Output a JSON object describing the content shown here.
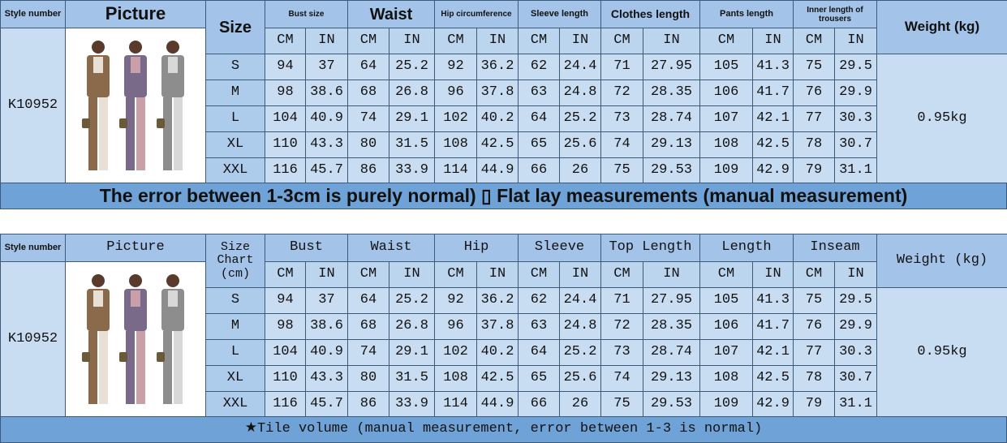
{
  "tables": [
    {
      "headers": {
        "style": "Style number",
        "picture": "Picture",
        "size": "Size",
        "groups": [
          "Bust size",
          "Waist",
          "Hip circumference",
          "Sleeve length",
          "Clothes length",
          "Pants length",
          "Inner length of trousers"
        ],
        "units": [
          "CM",
          "IN"
        ],
        "weight": "Weight (kg)"
      },
      "style_number": "K10952",
      "weight": "0.95kg",
      "rows": [
        [
          "S",
          94,
          37,
          64,
          25.2,
          92,
          36.2,
          62,
          24.4,
          71,
          27.95,
          105,
          41.3,
          75,
          29.5
        ],
        [
          "M",
          98,
          38.6,
          68,
          26.8,
          96,
          37.8,
          63,
          24.8,
          72,
          28.35,
          106,
          41.7,
          76,
          29.9
        ],
        [
          "L",
          104,
          40.9,
          74,
          29.1,
          102,
          40.2,
          64,
          25.2,
          73,
          28.74,
          107,
          42.1,
          77,
          30.3
        ],
        [
          "XL",
          110,
          43.3,
          80,
          31.5,
          108,
          42.5,
          65,
          25.6,
          74,
          29.13,
          108,
          42.5,
          78,
          30.7
        ],
        [
          "XXL",
          116,
          45.7,
          86,
          33.9,
          114,
          44.9,
          66,
          26,
          75,
          29.53,
          109,
          42.9,
          79,
          31.1
        ]
      ],
      "footer": "The error between 1-3cm is purely normal) ▯ Flat lay measurements (manual measurement)"
    },
    {
      "headers": {
        "style": "Style number",
        "picture": "Picture",
        "size": "Size Chart (cm)",
        "groups": [
          "Bust",
          "Waist",
          "Hip",
          "Sleeve",
          "Top Length",
          "Length",
          "Inseam"
        ],
        "units": [
          "CM",
          "IN"
        ],
        "weight": "Weight (kg)"
      },
      "style_number": "K10952",
      "weight": "0.95kg",
      "rows": [
        [
          "S",
          94,
          37,
          64,
          25.2,
          92,
          36.2,
          62,
          24.4,
          71,
          27.95,
          105,
          41.3,
          75,
          29.5
        ],
        [
          "M",
          98,
          38.6,
          68,
          26.8,
          96,
          37.8,
          63,
          24.8,
          72,
          28.35,
          106,
          41.7,
          76,
          29.9
        ],
        [
          "L",
          104,
          40.9,
          74,
          29.1,
          102,
          40.2,
          64,
          25.2,
          73,
          28.74,
          107,
          42.1,
          77,
          30.3
        ],
        [
          "XL",
          110,
          43.3,
          80,
          31.5,
          108,
          42.5,
          65,
          25.6,
          74,
          29.13,
          108,
          42.5,
          78,
          30.7
        ],
        [
          "XXL",
          116,
          45.7,
          86,
          33.9,
          114,
          44.9,
          66,
          26,
          75,
          29.53,
          109,
          42.9,
          79,
          31.1
        ]
      ],
      "footer": "★Tile volume (manual measurement, error between 1-3 is normal)"
    }
  ]
}
